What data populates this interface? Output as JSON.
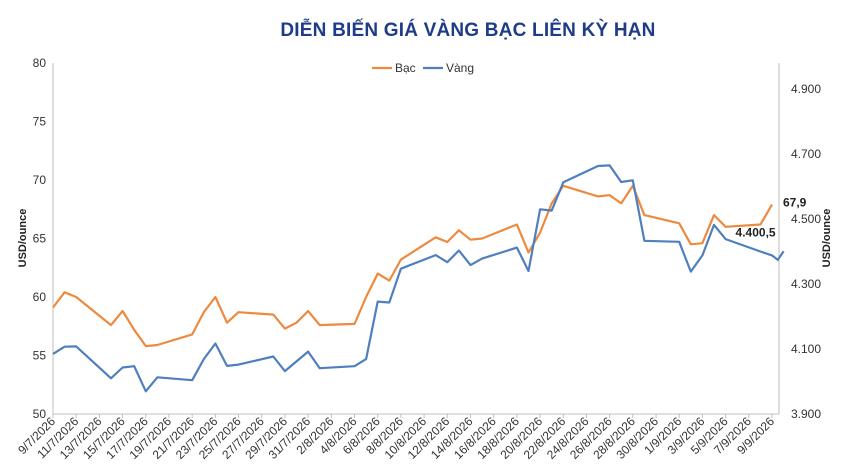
{
  "chart_data": {
    "type": "line",
    "title": "DIỄN BIẾN GIÁ VÀNG BẠC LIÊN KỲ HẠN",
    "ylabel_left": "USD/ounce",
    "ylabel_right": "USD/ounce",
    "ylim_left": [
      50,
      80
    ],
    "ylim_right": [
      3900,
      4980
    ],
    "yticks_left": [
      "50",
      "55",
      "60",
      "65",
      "70",
      "75",
      "80"
    ],
    "yticks_left_values": [
      50,
      55,
      60,
      65,
      70,
      75,
      80
    ],
    "yticks_right": [
      "3.900",
      "4.100",
      "4.300",
      "4.500",
      "4.700",
      "4.900"
    ],
    "yticks_right_values": [
      3900,
      4100,
      4300,
      4500,
      4700,
      4900
    ],
    "x_tick_labels": [
      "9/7/2026",
      "11/7/2026",
      "13/7/2026",
      "15/7/2026",
      "17/7/2026",
      "19/7/2026",
      "21/7/2026",
      "23/7/2026",
      "25/7/2026",
      "27/7/2026",
      "29/7/2026",
      "31/7/2026",
      "2/8/2026",
      "4/8/2026",
      "6/8/2026",
      "8/8/2026",
      "10/8/2026",
      "12/8/2026",
      "14/8/2026",
      "16/8/2026",
      "18/8/2026",
      "20/8/2026",
      "22/8/2026",
      "24/8/2026",
      "26/8/2026",
      "28/8/2026",
      "30/8/2026",
      "1/9/2026",
      "3/9/2026",
      "5/9/2026",
      "7/9/2026",
      "9/9/2026"
    ],
    "x_day_range": [
      0,
      62
    ],
    "legend_position": "top-center",
    "grid": false,
    "series": [
      {
        "name": "Bạc",
        "axis": "left",
        "color": "#ed8a3f",
        "end_label": "67,9",
        "points": [
          [
            0,
            59.1
          ],
          [
            1,
            60.4
          ],
          [
            2,
            60.0
          ],
          [
            5,
            57.6
          ],
          [
            6,
            58.8
          ],
          [
            7,
            57.2
          ],
          [
            8,
            55.8
          ],
          [
            9,
            55.9
          ],
          [
            12,
            56.8
          ],
          [
            13,
            58.7
          ],
          [
            14,
            60.0
          ],
          [
            15,
            57.8
          ],
          [
            16,
            58.7
          ],
          [
            19,
            58.5
          ],
          [
            20,
            57.3
          ],
          [
            21,
            57.8
          ],
          [
            22,
            58.8
          ],
          [
            23,
            57.6
          ],
          [
            26,
            57.7
          ],
          [
            27,
            60.0
          ],
          [
            28,
            62.0
          ],
          [
            29,
            61.4
          ],
          [
            30,
            63.2
          ],
          [
            33,
            65.1
          ],
          [
            34,
            64.7
          ],
          [
            35,
            65.7
          ],
          [
            36,
            64.9
          ],
          [
            37,
            65.0
          ],
          [
            40,
            66.2
          ],
          [
            41,
            63.8
          ],
          [
            42,
            65.5
          ],
          [
            43,
            68.0
          ],
          [
            44,
            69.5
          ],
          [
            47,
            68.6
          ],
          [
            48,
            68.7
          ],
          [
            49,
            68.0
          ],
          [
            50,
            69.5
          ],
          [
            51,
            67.0
          ],
          [
            54,
            66.3
          ],
          [
            55,
            64.5
          ],
          [
            56,
            64.6
          ],
          [
            57,
            67.0
          ],
          [
            58,
            66.0
          ],
          [
            61,
            66.2
          ],
          [
            62,
            67.9
          ]
        ]
      },
      {
        "name": "Vàng",
        "axis": "right",
        "color": "#4f7fbf",
        "end_label": "4.400,5",
        "points": [
          [
            0,
            4085
          ],
          [
            1,
            4107
          ],
          [
            2,
            4108
          ],
          [
            5,
            4010
          ],
          [
            6,
            4043
          ],
          [
            7,
            4047
          ],
          [
            8,
            3970
          ],
          [
            9,
            4013
          ],
          [
            12,
            4004
          ],
          [
            13,
            4069
          ],
          [
            14,
            4117
          ],
          [
            15,
            4048
          ],
          [
            16,
            4052
          ],
          [
            19,
            4077
          ],
          [
            20,
            4032
          ],
          [
            21,
            4062
          ],
          [
            22,
            4092
          ],
          [
            23,
            4041
          ],
          [
            26,
            4047
          ],
          [
            27,
            4069
          ],
          [
            28,
            4246
          ],
          [
            29,
            4243
          ],
          [
            30,
            4347
          ],
          [
            33,
            4389
          ],
          [
            34,
            4367
          ],
          [
            35,
            4403
          ],
          [
            36,
            4358
          ],
          [
            37,
            4378
          ],
          [
            40,
            4412
          ],
          [
            41,
            4340
          ],
          [
            42,
            4530
          ],
          [
            43,
            4526
          ],
          [
            44,
            4613
          ],
          [
            47,
            4663
          ],
          [
            48,
            4665
          ],
          [
            49,
            4614
          ],
          [
            50,
            4619
          ],
          [
            51,
            4433
          ],
          [
            54,
            4430
          ],
          [
            55,
            4338
          ],
          [
            56,
            4388
          ],
          [
            57,
            4482
          ],
          [
            58,
            4438
          ],
          [
            61,
            4400
          ],
          [
            62,
            4388
          ],
          [
            62.5,
            4374
          ],
          [
            63,
            4400.5
          ]
        ]
      }
    ]
  }
}
